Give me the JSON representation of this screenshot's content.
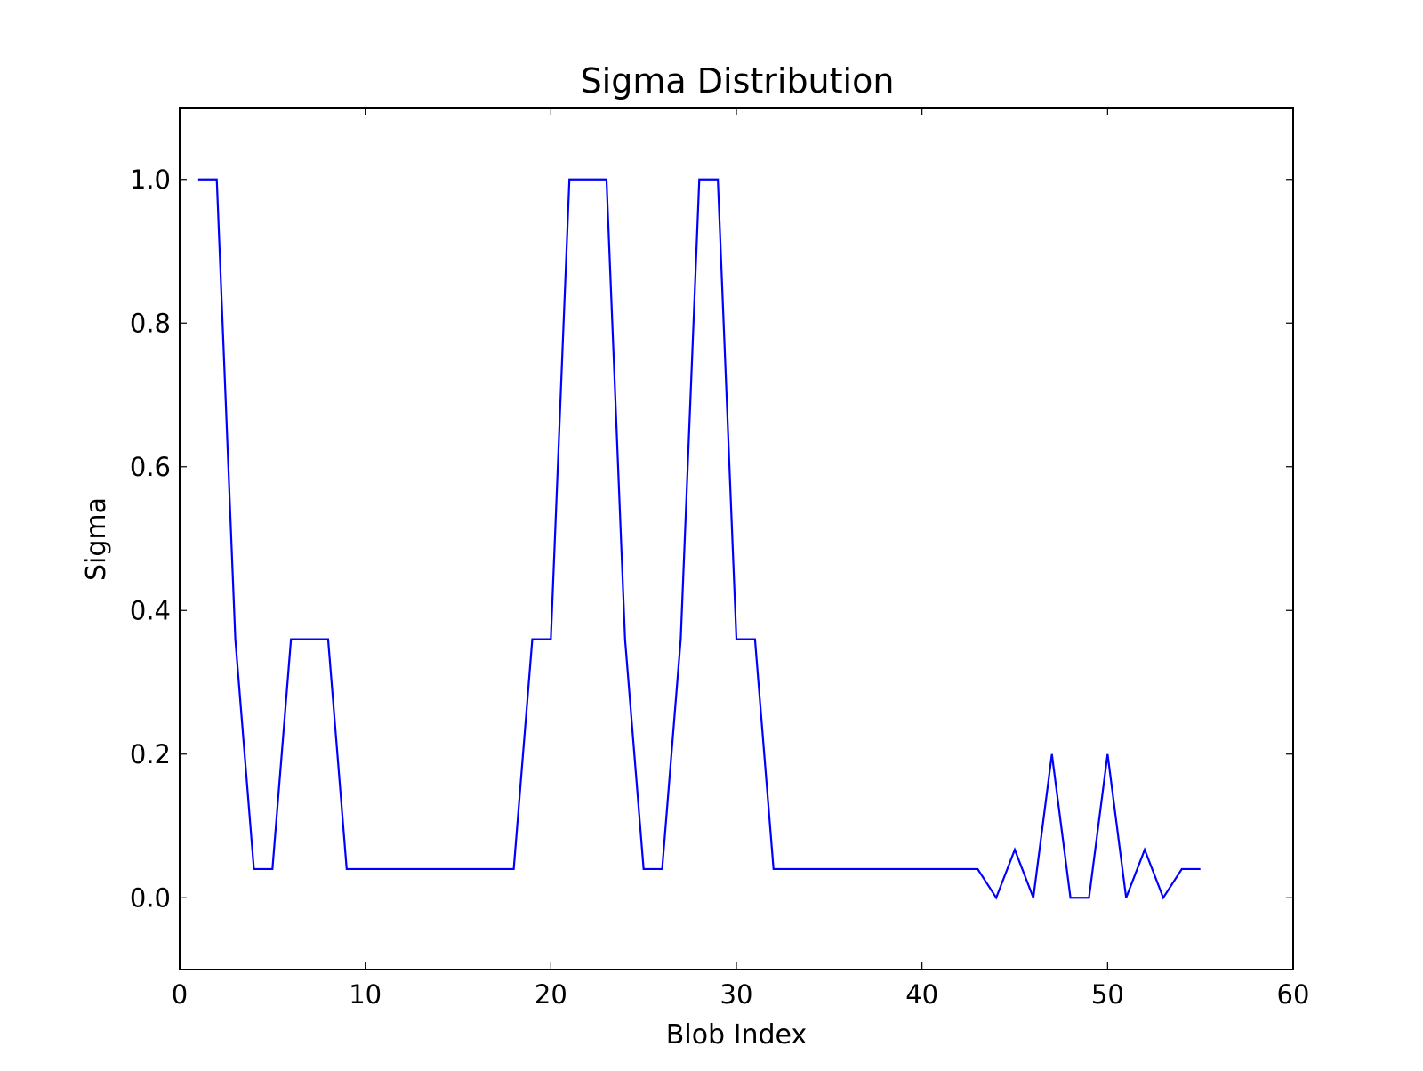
{
  "chart_data": {
    "type": "line",
    "title": "Sigma Distribution",
    "xlabel": "Blob Index",
    "ylabel": "Sigma",
    "xlim": [
      0,
      60
    ],
    "ylim": [
      -0.1,
      1.1
    ],
    "xticks": [
      0,
      10,
      20,
      30,
      40,
      50,
      60
    ],
    "xtick_labels": [
      "0",
      "10",
      "20",
      "30",
      "40",
      "50",
      "60"
    ],
    "yticks": [
      0.0,
      0.2,
      0.4,
      0.6,
      0.8,
      1.0
    ],
    "ytick_labels": [
      "0.0",
      "0.2",
      "0.4",
      "0.6",
      "0.8",
      "1.0"
    ],
    "grid": false,
    "line_color": "#0000ff",
    "series": [
      {
        "x": [
          1,
          2,
          3,
          4,
          5,
          6,
          7,
          8,
          9,
          10,
          11,
          12,
          13,
          14,
          15,
          16,
          17,
          18,
          19,
          20,
          21,
          22,
          23,
          24,
          25,
          26,
          27,
          28,
          29,
          30,
          31,
          32,
          33,
          34,
          35,
          36,
          37,
          38,
          39,
          40,
          41,
          42,
          43,
          44,
          45,
          46,
          47,
          48,
          49,
          50,
          51,
          52,
          53,
          54,
          55
        ],
        "y": [
          1.0,
          1.0,
          0.36,
          0.04,
          0.04,
          0.36,
          0.36,
          0.36,
          0.04,
          0.04,
          0.04,
          0.04,
          0.04,
          0.04,
          0.04,
          0.04,
          0.04,
          0.04,
          0.36,
          0.36,
          1.0,
          1.0,
          1.0,
          0.36,
          0.04,
          0.04,
          0.36,
          1.0,
          1.0,
          0.36,
          0.36,
          0.04,
          0.04,
          0.04,
          0.04,
          0.04,
          0.04,
          0.04,
          0.04,
          0.04,
          0.04,
          0.04,
          0.04,
          0.0,
          0.067,
          0.0,
          0.2,
          0.0,
          0.0,
          0.2,
          0.0,
          0.067,
          0.0,
          0.04,
          0.04
        ]
      }
    ]
  }
}
